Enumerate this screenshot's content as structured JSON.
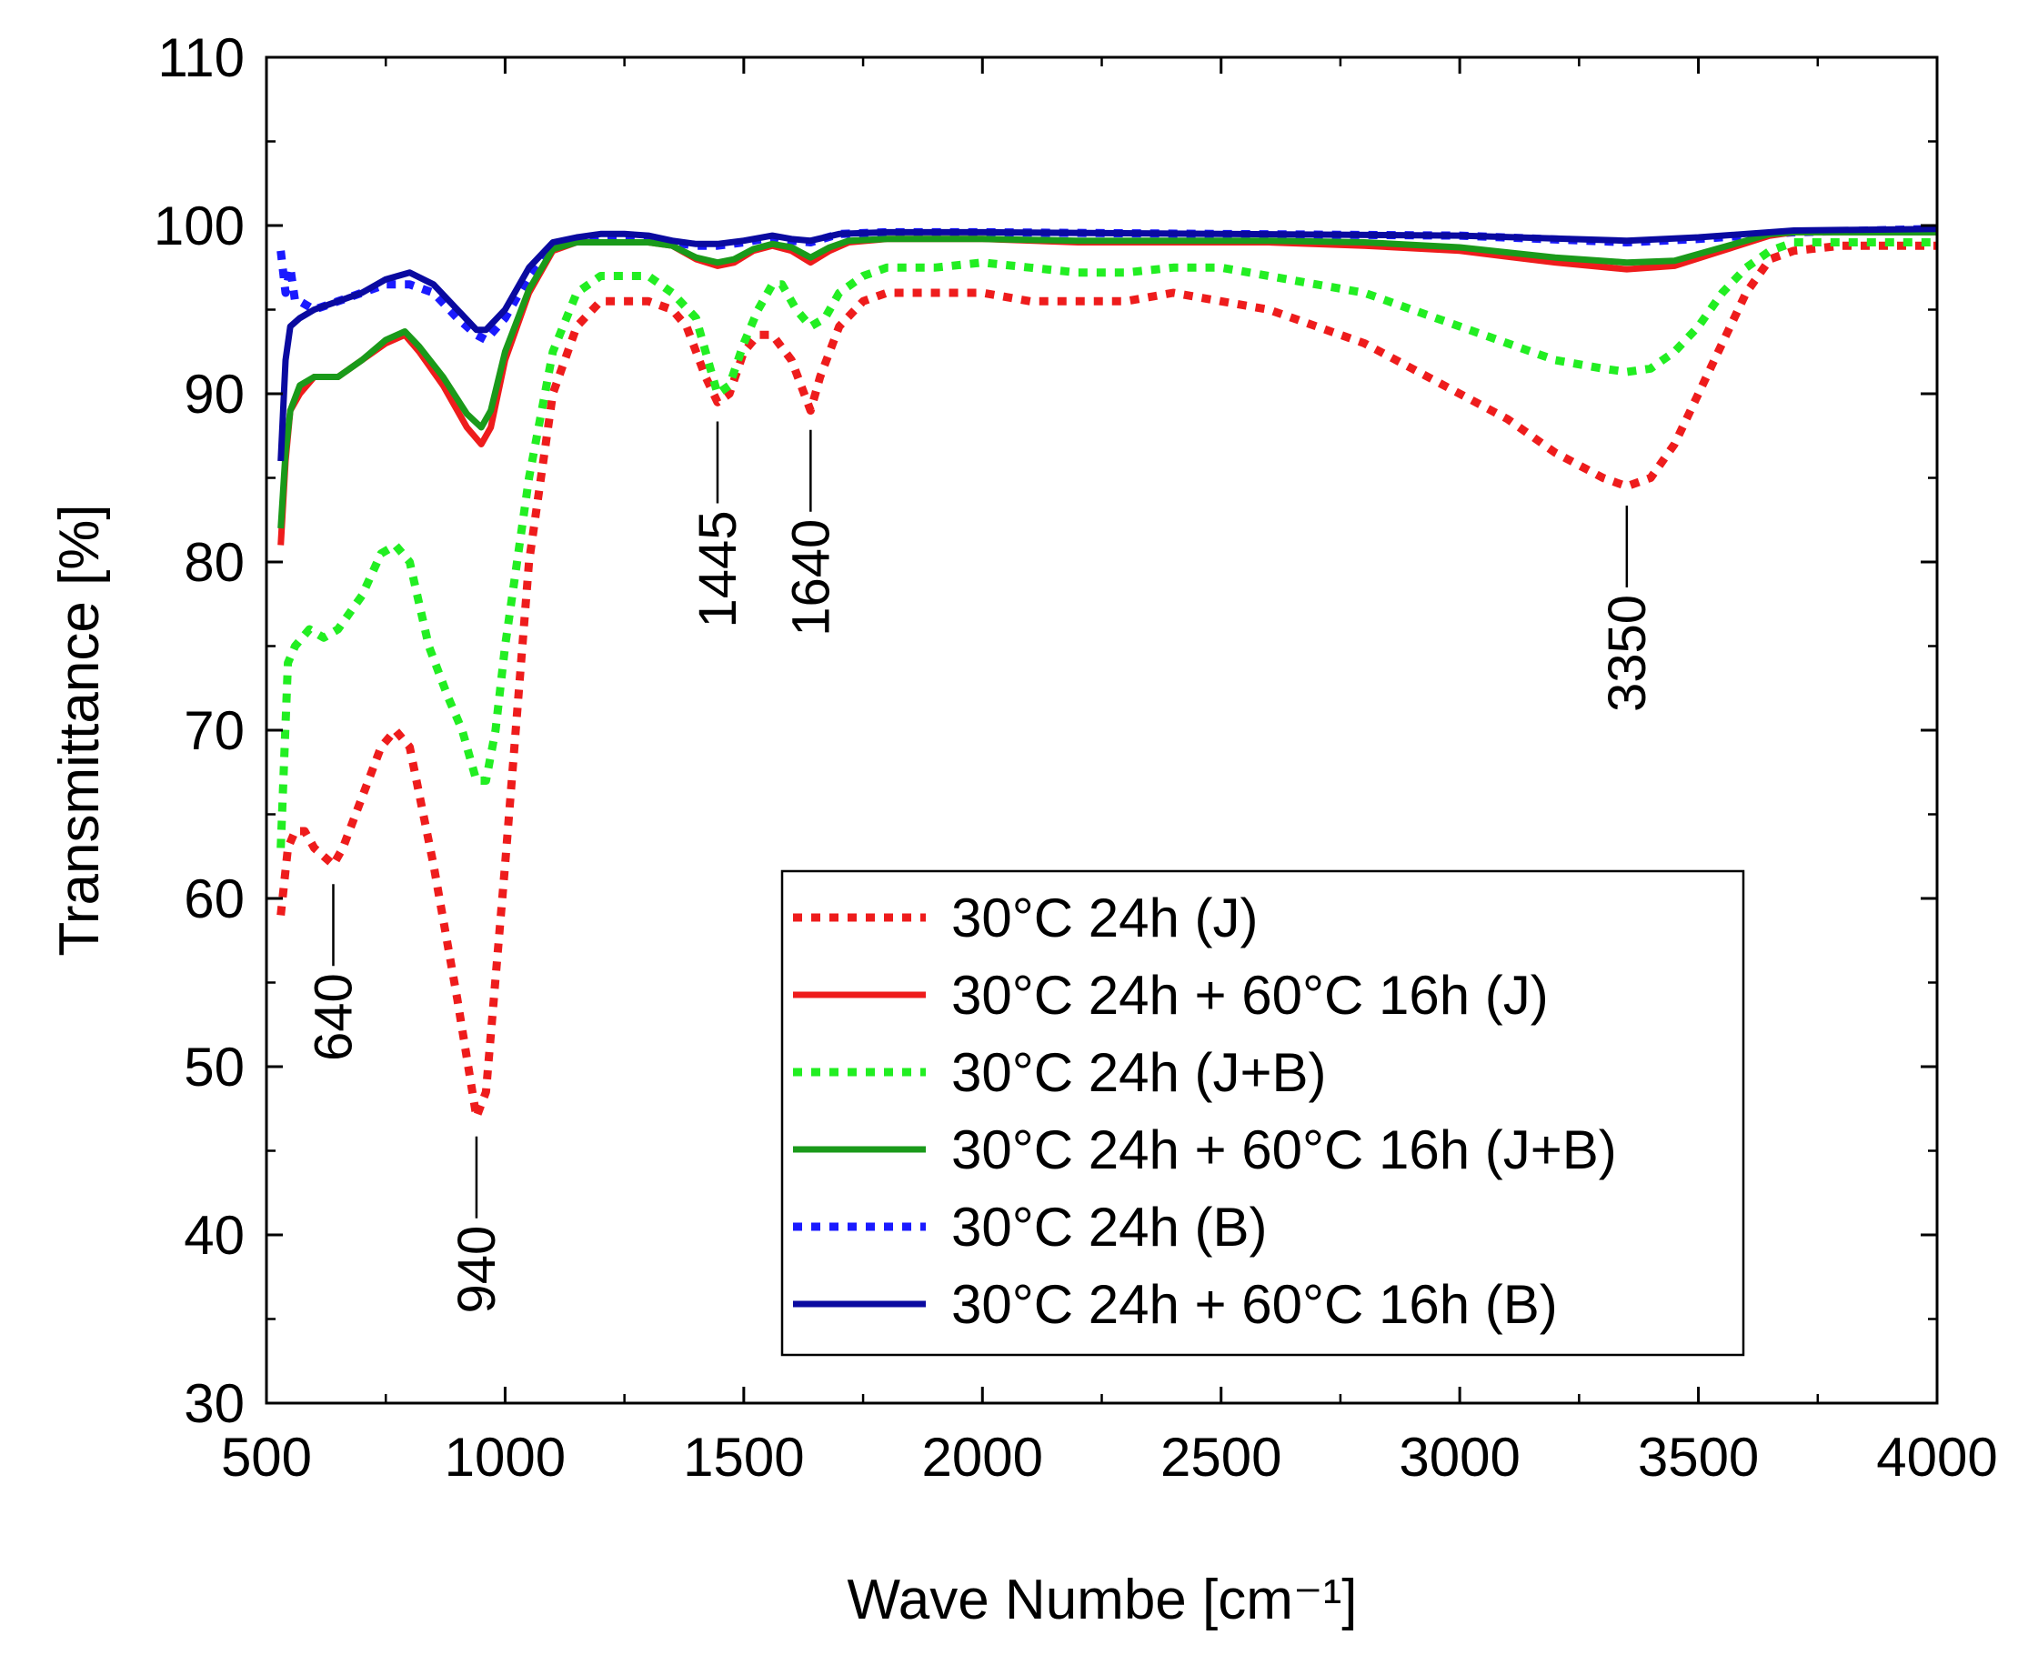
{
  "chart_data": {
    "type": "line",
    "title": "",
    "xlabel": "Wave Numbe  [cm⁻¹]",
    "ylabel": "Transmittance [%]",
    "xlim": [
      500,
      4000
    ],
    "ylim": [
      30,
      110
    ],
    "xticks": [
      500,
      1000,
      1500,
      2000,
      2500,
      3000,
      3500,
      4000
    ],
    "yticks": [
      30,
      40,
      50,
      60,
      70,
      80,
      90,
      100,
      110
    ],
    "grid": false,
    "legend_position": "bottom-right",
    "series": [
      {
        "name": "30°C 24h (J)",
        "color": "#ee1c1c",
        "style": "dotted",
        "x": [
          530,
          545,
          560,
          580,
          600,
          620,
          640,
          660,
          700,
          740,
          770,
          800,
          850,
          900,
          940,
          960,
          1000,
          1050,
          1100,
          1150,
          1200,
          1250,
          1300,
          1350,
          1380,
          1420,
          1445,
          1470,
          1500,
          1530,
          1560,
          1600,
          1620,
          1640,
          1660,
          1700,
          1750,
          1800,
          1900,
          2000,
          2100,
          2200,
          2300,
          2400,
          2500,
          2600,
          2700,
          2800,
          2900,
          3000,
          3100,
          3200,
          3300,
          3350,
          3400,
          3450,
          3500,
          3550,
          3600,
          3650,
          3700,
          3800,
          3900,
          4000
        ],
        "y": [
          59,
          63,
          64,
          64,
          63,
          62.5,
          62,
          63,
          66,
          69,
          70,
          69,
          62,
          54,
          47,
          48.5,
          62,
          80,
          90,
          94,
          95.5,
          95.5,
          95.5,
          95,
          94,
          91,
          89.5,
          90,
          92.5,
          93.5,
          93.5,
          92,
          90.5,
          89,
          91,
          94,
          95.5,
          96,
          96,
          96,
          95.5,
          95.5,
          95.5,
          96,
          95.5,
          95,
          94,
          93,
          91.5,
          90,
          88.5,
          86.5,
          85,
          84.5,
          85,
          87,
          90,
          93,
          96,
          98,
          98.5,
          98.8,
          98.8,
          98.8
        ]
      },
      {
        "name": "30°C 24h + 60°C 16h (J)",
        "color": "#ee1c1c",
        "style": "solid",
        "x": [
          530,
          540,
          550,
          570,
          600,
          650,
          700,
          750,
          790,
          820,
          870,
          920,
          950,
          970,
          1000,
          1050,
          1100,
          1150,
          1200,
          1250,
          1300,
          1350,
          1400,
          1445,
          1480,
          1520,
          1560,
          1600,
          1640,
          1680,
          1720,
          1800,
          2000,
          2200,
          2400,
          2600,
          2800,
          3000,
          3200,
          3350,
          3450,
          3550,
          3650,
          3700,
          4000
        ],
        "y": [
          81,
          86,
          89,
          90,
          91,
          91,
          92,
          93,
          93.5,
          92.5,
          90.5,
          88,
          87,
          88,
          92,
          96,
          98.5,
          99,
          99,
          99,
          99,
          98.8,
          98,
          97.6,
          97.8,
          98.5,
          98.8,
          98.5,
          97.8,
          98.5,
          99,
          99.2,
          99.2,
          99,
          99,
          99,
          98.8,
          98.5,
          97.8,
          97.4,
          97.6,
          98.5,
          99.4,
          99.6,
          99.6
        ]
      },
      {
        "name": "30°C 24h (J+B)",
        "color": "#22ee22",
        "style": "dotted",
        "x": [
          530,
          545,
          560,
          590,
          620,
          650,
          700,
          740,
          770,
          800,
          840,
          880,
          910,
          940,
          960,
          980,
          1000,
          1050,
          1100,
          1150,
          1200,
          1250,
          1300,
          1350,
          1400,
          1430,
          1445,
          1470,
          1500,
          1530,
          1560,
          1580,
          1610,
          1640,
          1670,
          1700,
          1750,
          1800,
          1900,
          2000,
          2100,
          2200,
          2300,
          2400,
          2500,
          2600,
          2700,
          2800,
          2900,
          3000,
          3100,
          3200,
          3300,
          3350,
          3400,
          3450,
          3500,
          3550,
          3600,
          3650,
          3700,
          3800,
          4000
        ],
        "y": [
          63,
          74,
          75,
          76,
          75.5,
          76,
          78,
          80.5,
          81,
          80,
          75,
          72,
          70,
          67,
          67,
          70,
          75,
          85,
          92.5,
          96,
          97,
          97,
          97,
          96,
          94.5,
          91.5,
          90,
          90.5,
          93,
          95,
          96.5,
          96.5,
          95,
          94,
          94.5,
          96,
          97,
          97.5,
          97.5,
          97.8,
          97.5,
          97.2,
          97.2,
          97.5,
          97.5,
          97,
          96.5,
          96,
          95,
          94,
          93,
          92,
          91.5,
          91.3,
          91.5,
          92.5,
          94,
          96,
          97.5,
          98.5,
          99,
          99,
          99
        ]
      },
      {
        "name": "30°C 24h + 60°C 16h (J+B)",
        "color": "#1a9a1a",
        "style": "solid",
        "x": [
          530,
          540,
          550,
          570,
          600,
          650,
          700,
          750,
          790,
          820,
          870,
          920,
          950,
          970,
          1000,
          1050,
          1100,
          1150,
          1200,
          1250,
          1300,
          1350,
          1400,
          1445,
          1480,
          1520,
          1560,
          1600,
          1640,
          1680,
          1720,
          1800,
          2000,
          2200,
          2400,
          2600,
          2800,
          3000,
          3200,
          3350,
          3450,
          3550,
          3650,
          3700,
          4000
        ],
        "y": [
          82,
          86.5,
          89,
          90.5,
          91,
          91,
          92,
          93.2,
          93.7,
          92.8,
          91,
          88.8,
          88,
          89,
          92.5,
          96.2,
          98.6,
          99,
          99,
          99,
          99,
          98.8,
          98.1,
          97.8,
          98,
          98.6,
          98.9,
          98.7,
          98.1,
          98.7,
          99.1,
          99.2,
          99.2,
          99.1,
          99.1,
          99.1,
          99,
          98.7,
          98.1,
          97.8,
          97.9,
          98.7,
          99.5,
          99.6,
          99.6
        ]
      },
      {
        "name": "30°C 24h (B)",
        "color": "#1a1aff",
        "style": "dotted",
        "x": [
          530,
          540,
          550,
          560,
          570,
          600,
          650,
          700,
          750,
          800,
          850,
          900,
          940,
          960,
          1000,
          1050,
          1100,
          1150,
          1200,
          1250,
          1300,
          1350,
          1400,
          1445,
          1500,
          1560,
          1600,
          1640,
          1700,
          1800,
          2000,
          2500,
          3000,
          3350,
          3500,
          3700,
          4000
        ],
        "y": [
          98.5,
          96,
          97.5,
          95.5,
          95.5,
          95,
          95.5,
          96,
          96.5,
          96.5,
          96,
          94.5,
          93.5,
          93.2,
          94.5,
          97,
          98.8,
          99.2,
          99.4,
          99.4,
          99.3,
          99,
          98.8,
          98.8,
          99,
          99.3,
          99.1,
          99,
          99.5,
          99.6,
          99.6,
          99.5,
          99.4,
          99,
          99.2,
          99.6,
          99.8
        ]
      },
      {
        "name": "30°C 24h + 60°C 16h (B)",
        "color": "#0a0aa0",
        "style": "solid",
        "x": [
          530,
          540,
          550,
          570,
          600,
          650,
          700,
          750,
          800,
          850,
          900,
          940,
          960,
          1000,
          1050,
          1100,
          1150,
          1200,
          1250,
          1300,
          1350,
          1400,
          1445,
          1500,
          1560,
          1600,
          1640,
          1700,
          1800,
          2000,
          2500,
          3000,
          3350,
          3500,
          3700,
          4000
        ],
        "y": [
          86,
          92,
          94,
          94.5,
          95,
          95.5,
          96,
          96.8,
          97.2,
          96.5,
          95,
          93.8,
          93.8,
          95,
          97.5,
          99,
          99.3,
          99.5,
          99.5,
          99.4,
          99.1,
          98.9,
          98.9,
          99.1,
          99.4,
          99.2,
          99.1,
          99.5,
          99.6,
          99.6,
          99.5,
          99.4,
          99.1,
          99.3,
          99.7,
          99.8
        ]
      }
    ],
    "annotations": [
      {
        "label": "640",
        "x": 640,
        "y": 61.5
      },
      {
        "label": "940",
        "x": 940,
        "y": 46.5
      },
      {
        "label": "1445",
        "x": 1445,
        "y": 89
      },
      {
        "label": "1640",
        "x": 1640,
        "y": 88.5
      },
      {
        "label": "3350",
        "x": 3350,
        "y": 84
      }
    ]
  }
}
